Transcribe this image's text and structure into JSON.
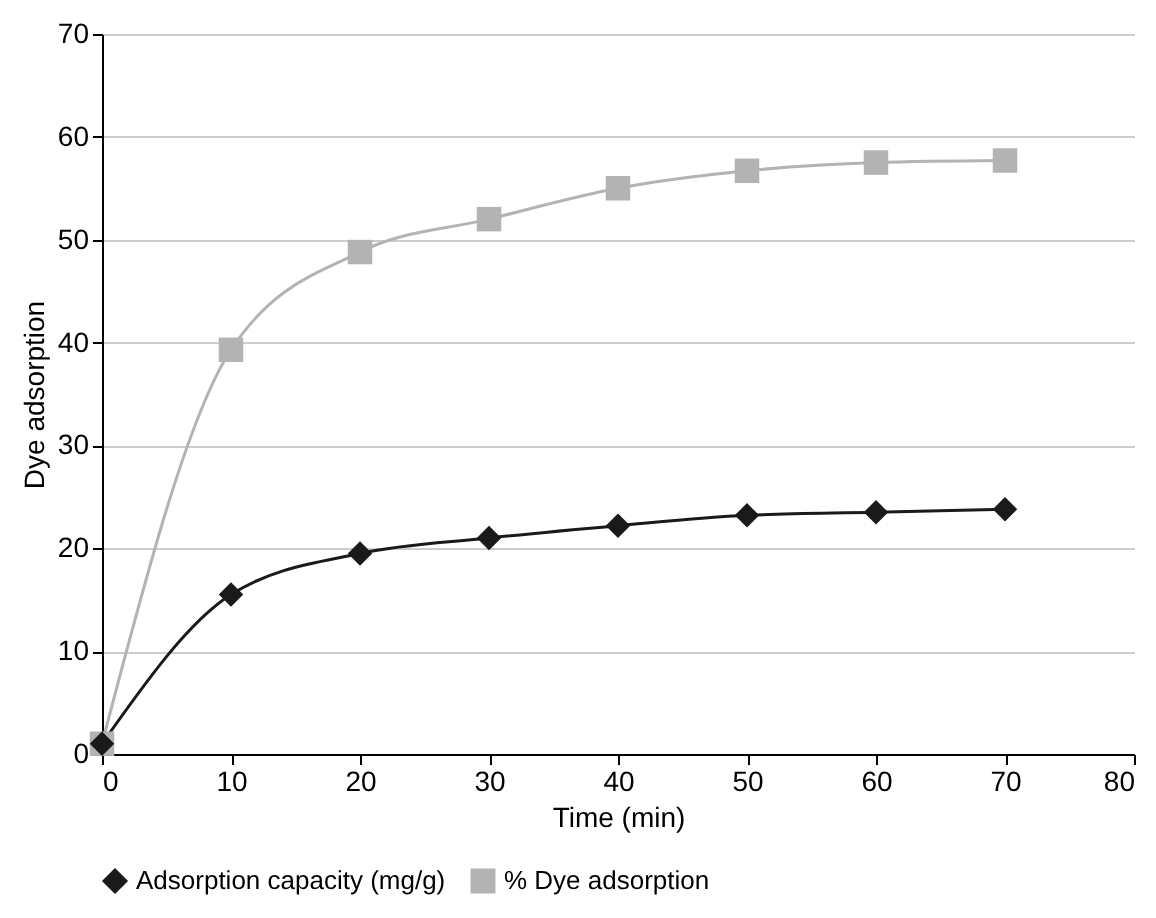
{
  "chart_data": {
    "type": "line",
    "xlabel": "Time (min)",
    "ylabel": "Dye adsorption",
    "x": [
      0,
      10,
      20,
      30,
      40,
      50,
      60,
      70
    ],
    "series": [
      {
        "name": "Adsorption capacity (mg/g)",
        "color": "#1a1a1a",
        "marker": "diamond",
        "values": [
          1,
          15.5,
          19.5,
          21,
          22.2,
          23.2,
          23.5,
          23.8
        ]
      },
      {
        "name": "% Dye adsorption",
        "color": "#b3b3b3",
        "marker": "square",
        "values": [
          1,
          39.3,
          48.8,
          52,
          55,
          56.7,
          57.5,
          57.7
        ]
      }
    ],
    "xlim": [
      0,
      80
    ],
    "xticks": [
      0,
      10,
      20,
      30,
      40,
      50,
      60,
      70,
      80
    ],
    "ylim": [
      0,
      70
    ],
    "yticks": [
      0,
      10,
      20,
      30,
      40,
      50,
      60,
      70
    ],
    "grid": "y",
    "legend": "bottom",
    "line_style": "solid"
  }
}
